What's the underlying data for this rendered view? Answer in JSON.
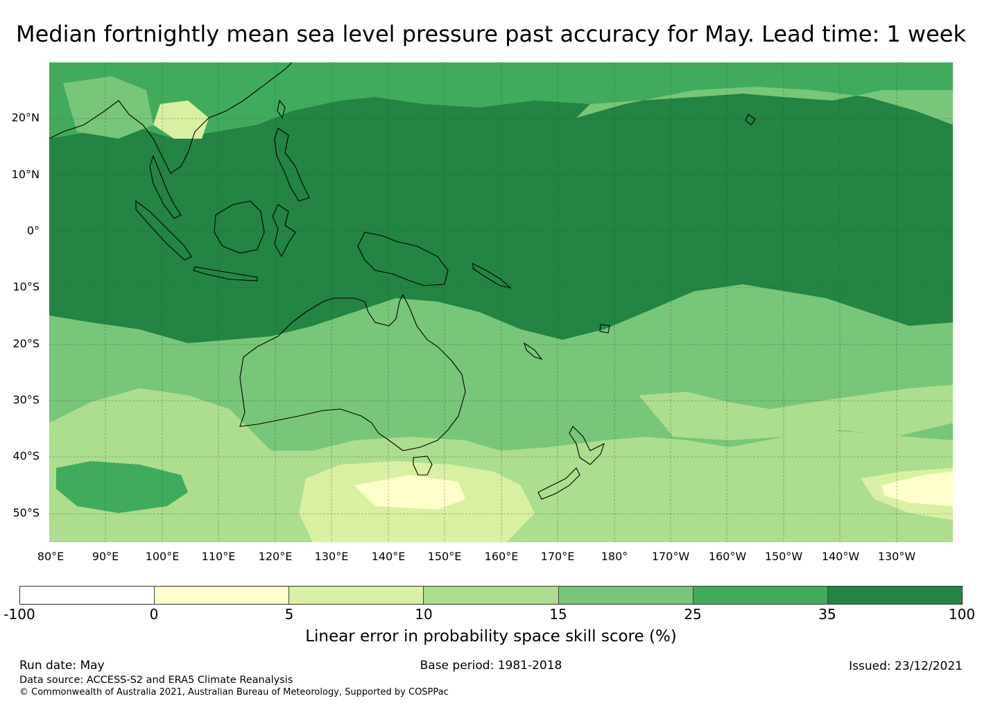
{
  "title": "Median fortnightly mean sea level pressure past accuracy for May. Lead time: 1 week",
  "map": {
    "lat_labels": [
      "20°N",
      "10°N",
      "0°",
      "10°S",
      "20°S",
      "30°S",
      "40°S",
      "50°S"
    ],
    "lon_labels": [
      "80°E",
      "90°E",
      "100°E",
      "110°E",
      "120°E",
      "130°E",
      "140°E",
      "150°E",
      "160°E",
      "170°E",
      "180°",
      "170°W",
      "160°W",
      "150°W",
      "140°W",
      "130°W"
    ],
    "extent": {
      "lon": [
        80,
        240
      ],
      "lat": [
        -55,
        30
      ]
    },
    "regions": [
      "Australia",
      "New Zealand",
      "Maritime Continent",
      "Papua New Guinea",
      "Tasmania"
    ]
  },
  "colorbar": {
    "title": "Linear error in probability space skill score (%)",
    "ticks": [
      "-100",
      "0",
      "5",
      "10",
      "15",
      "25",
      "35",
      "100"
    ],
    "colors": [
      "#ffffff",
      "#ffffcc",
      "#d9f0a3",
      "#addd8e",
      "#78c679",
      "#41ab5d",
      "#238443"
    ]
  },
  "footer": {
    "run_date": "Run date: May",
    "base_period": "Base period: 1981-2018",
    "issued": "Issued: 23/12/2021",
    "data_source": "Data source: ACCESS-S2 and ERA5 Climate Reanalysis",
    "copyright": "© Commonwealth of Australia 2021, Australian Bureau of Meteorology, Supported by COSPPac"
  }
}
